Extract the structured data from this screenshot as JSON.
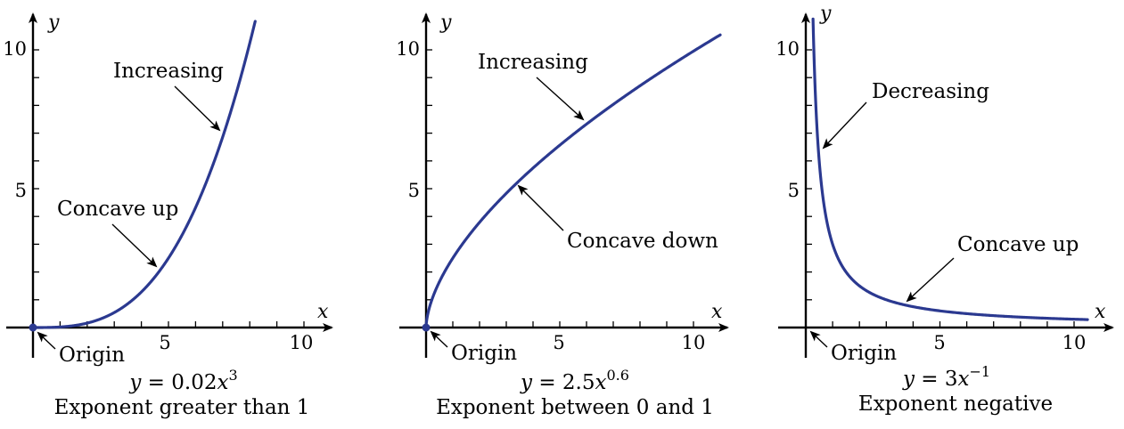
{
  "chart_data": [
    {
      "type": "line",
      "function": "y = 0.02x^3",
      "coefficient": 0.02,
      "exponent": 3,
      "xlabel": "x",
      "ylabel": "y",
      "xlim": [
        0,
        11
      ],
      "ylim": [
        0,
        11
      ],
      "x_ticks": [
        5,
        10
      ],
      "y_ticks": [
        5,
        10
      ],
      "x_domain": [
        0,
        8.2
      ],
      "annotations": [
        {
          "text": "Increasing",
          "at_x": 7
        },
        {
          "text": "Concave up",
          "at_x": 4.7
        },
        {
          "text": "Origin",
          "at_x": 0
        }
      ],
      "equation": {
        "lhs": "y",
        "eq": "= 0.02",
        "var": "x",
        "power": "3"
      },
      "caption": "Exponent greater than 1"
    },
    {
      "type": "line",
      "function": "y = 2.5x^0.6",
      "coefficient": 2.5,
      "exponent": 0.6,
      "xlabel": "x",
      "ylabel": "y",
      "xlim": [
        0,
        11
      ],
      "ylim": [
        0,
        11
      ],
      "x_ticks": [
        5,
        10
      ],
      "y_ticks": [
        5,
        10
      ],
      "x_domain": [
        0,
        11
      ],
      "annotations": [
        {
          "text": "Increasing",
          "at_x": 6
        },
        {
          "text": "Concave down",
          "at_x": 3.5
        },
        {
          "text": "Origin",
          "at_x": 0
        }
      ],
      "equation": {
        "lhs": "y",
        "eq": "= 2.5",
        "var": "x",
        "power": "0.6"
      },
      "caption": "Exponent between 0 and 1"
    },
    {
      "type": "line",
      "function": "y = 3x^-1",
      "coefficient": 3,
      "exponent": -1,
      "xlabel": "x",
      "ylabel": "y",
      "xlim": [
        0,
        11
      ],
      "ylim": [
        0,
        11
      ],
      "x_ticks": [
        5,
        10
      ],
      "y_ticks": [
        5,
        10
      ],
      "x_domain": [
        0.27,
        10.5
      ],
      "annotations": [
        {
          "text": "Decreasing",
          "at_x": 0.55
        },
        {
          "text": "Concave up",
          "at_x": 3.8
        },
        {
          "text": "Origin",
          "at_x": 0
        }
      ],
      "equation": {
        "lhs": "y",
        "eq": "= 3",
        "var": "x",
        "power": "−1"
      },
      "caption": "Exponent negative"
    }
  ],
  "colors": {
    "curve": "#2b3990",
    "axis": "#000000",
    "background": "#ffffff"
  }
}
